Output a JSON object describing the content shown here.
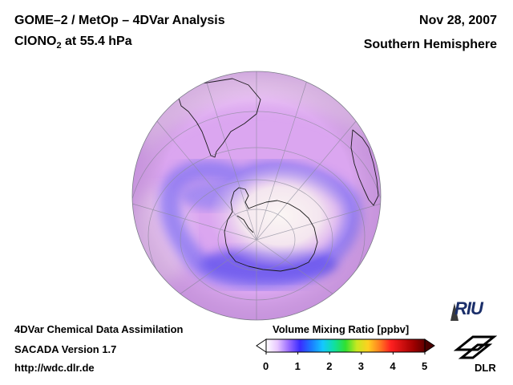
{
  "header": {
    "title_line1": "GOME–2 / MetOp – 4DVar Analysis",
    "species": "ClONO",
    "species_sub": "2",
    "level": " at 55.4 hPa",
    "date": "Nov 28, 2007",
    "hemisphere": "Southern Hemisphere"
  },
  "footer": {
    "line1": "4DVar Chemical Data Assimilation",
    "line2": "SACADA Version 1.7",
    "line3": "http://wdc.dlr.de"
  },
  "colorbar": {
    "title": "Volume Mixing Ratio [ppbv]",
    "ticks": [
      "0",
      "1",
      "2",
      "3",
      "4",
      "5"
    ],
    "range": [
      0,
      5
    ],
    "colors": [
      "#ffffff",
      "#e8c8ff",
      "#9a6cff",
      "#3a2cff",
      "#1a7cff",
      "#14c8ff",
      "#10e0a0",
      "#30e030",
      "#c8e820",
      "#ffd020",
      "#ff8020",
      "#ff2020",
      "#d01010",
      "#a00000",
      "#600000"
    ]
  },
  "logos": {
    "riu": "RIU",
    "dlr": "DLR"
  },
  "map": {
    "projection": "orthographic, south polar",
    "field_colors": {
      "background": "#dba6f0",
      "low": "#7a6cf0",
      "high": "#f6efee"
    }
  }
}
